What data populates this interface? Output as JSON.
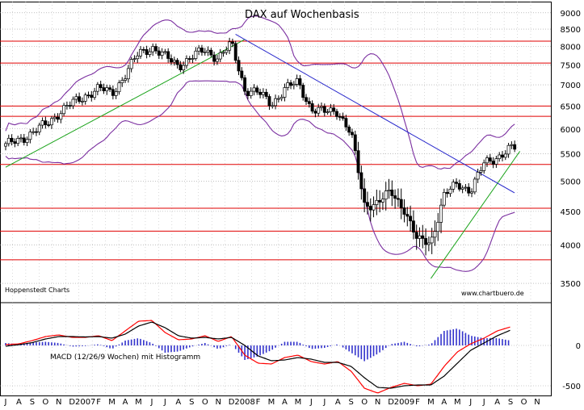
{
  "chart_data": [
    {
      "type": "candlestick",
      "title": "DAX  auf Wochenbasis",
      "y_scale": "log",
      "ylim": [
        3300,
        9200
      ],
      "y_ticks": [
        3500,
        4000,
        4500,
        5000,
        5500,
        6000,
        6500,
        7000,
        7500,
        8000,
        8500,
        9000
      ],
      "y_tick_labels": [
        "3500",
        "4000",
        "4500",
        "5000",
        "5500",
        "6000",
        "6500",
        "7000",
        "7500",
        "8000",
        "8500",
        "9000"
      ],
      "x_range": [
        "2006-07",
        "2009-11"
      ],
      "x_tick_labels": [
        "J",
        "A",
        "S",
        "O",
        "N",
        "D",
        "2007",
        "F",
        "M",
        "A",
        "M",
        "J",
        "J",
        "A",
        "S",
        "O",
        "N",
        "D",
        "2008",
        "F",
        "M",
        "A",
        "M",
        "J",
        "J",
        "A",
        "S",
        "O",
        "N",
        "D",
        "2009",
        "F",
        "M",
        "A",
        "M",
        "J",
        "J",
        "A",
        "S",
        "O",
        "N"
      ],
      "horizontal_levels": [
        8150,
        7550,
        6500,
        6270,
        5300,
        4550,
        4200,
        3800
      ],
      "close_path": [
        [
          "2006-07",
          5650
        ],
        [
          "2006-08",
          5800
        ],
        [
          "2006-09",
          5900
        ],
        [
          "2006-10",
          6100
        ],
        [
          "2006-11",
          6350
        ],
        [
          "2006-12",
          6550
        ],
        [
          "2007-01",
          6750
        ],
        [
          "2007-02",
          6900
        ],
        [
          "2007-03",
          6800
        ],
        [
          "2007-04",
          7250
        ],
        [
          "2007-05",
          7800
        ],
        [
          "2007-06",
          8000
        ],
        [
          "2007-07",
          7700
        ],
        [
          "2007-08",
          7500
        ],
        [
          "2007-09",
          7700
        ],
        [
          "2007-10",
          7900
        ],
        [
          "2007-11",
          7700
        ],
        [
          "2007-12",
          8050
        ],
        [
          "2008-01",
          6900
        ],
        [
          "2008-02",
          6800
        ],
        [
          "2008-03",
          6550
        ],
        [
          "2008-04",
          6900
        ],
        [
          "2008-05",
          7050
        ],
        [
          "2008-06",
          6450
        ],
        [
          "2008-07",
          6350
        ],
        [
          "2008-08",
          6400
        ],
        [
          "2008-09",
          5900
        ],
        [
          "2008-10",
          4600
        ],
        [
          "2008-11",
          4650
        ],
        [
          "2008-12",
          4800
        ],
        [
          "2009-01",
          4550
        ],
        [
          "2009-02",
          4050
        ],
        [
          "2009-03",
          4050
        ],
        [
          "2009-04",
          4750
        ],
        [
          "2009-05",
          4950
        ],
        [
          "2009-06",
          4850
        ],
        [
          "2009-07",
          5300
        ],
        [
          "2009-08",
          5450
        ],
        [
          "2009-09",
          5600
        ]
      ],
      "annotations": [
        "Hoppenstedt Charts",
        "www.chartbuero.de"
      ]
    },
    {
      "type": "line",
      "title": "MACD (12/26/9 Wochen) mit Histogramm",
      "ylim": [
        -600,
        500
      ],
      "y_ticks": [
        0,
        -500
      ],
      "y_tick_labels": [
        "0",
        "-500"
      ],
      "series": [
        {
          "name": "MACD",
          "color": "#ff0000",
          "values": [
            [
              "2006-07",
              10
            ],
            [
              "2006-08",
              20
            ],
            [
              "2006-09",
              60
            ],
            [
              "2006-10",
              110
            ],
            [
              "2006-11",
              130
            ],
            [
              "2006-12",
              100
            ],
            [
              "2007-01",
              100
            ],
            [
              "2007-02",
              120
            ],
            [
              "2007-03",
              60
            ],
            [
              "2007-04",
              180
            ],
            [
              "2007-05",
              300
            ],
            [
              "2007-06",
              310
            ],
            [
              "2007-07",
              160
            ],
            [
              "2007-08",
              70
            ],
            [
              "2007-09",
              80
            ],
            [
              "2007-10",
              120
            ],
            [
              "2007-11",
              50
            ],
            [
              "2007-12",
              110
            ],
            [
              "2008-01",
              -120
            ],
            [
              "2008-02",
              -220
            ],
            [
              "2008-03",
              -230
            ],
            [
              "2008-04",
              -150
            ],
            [
              "2008-05",
              -120
            ],
            [
              "2008-06",
              -200
            ],
            [
              "2008-07",
              -230
            ],
            [
              "2008-08",
              -200
            ],
            [
              "2008-09",
              -320
            ],
            [
              "2008-10",
              -530
            ],
            [
              "2008-11",
              -590
            ],
            [
              "2008-12",
              -520
            ],
            [
              "2009-01",
              -470
            ],
            [
              "2009-02",
              -500
            ],
            [
              "2009-03",
              -480
            ],
            [
              "2009-04",
              -260
            ],
            [
              "2009-05",
              -80
            ],
            [
              "2009-06",
              20
            ],
            [
              "2009-07",
              90
            ],
            [
              "2009-08",
              180
            ],
            [
              "2009-09",
              230
            ]
          ]
        },
        {
          "name": "Signal",
          "color": "#000000",
          "values": [
            [
              "2006-07",
              -10
            ],
            [
              "2006-08",
              10
            ],
            [
              "2006-09",
              35
            ],
            [
              "2006-10",
              80
            ],
            [
              "2006-11",
              110
            ],
            [
              "2006-12",
              110
            ],
            [
              "2007-01",
              105
            ],
            [
              "2007-02",
              110
            ],
            [
              "2007-03",
              90
            ],
            [
              "2007-04",
              140
            ],
            [
              "2007-05",
              240
            ],
            [
              "2007-06",
              290
            ],
            [
              "2007-07",
              220
            ],
            [
              "2007-08",
              120
            ],
            [
              "2007-09",
              90
            ],
            [
              "2007-10",
              100
            ],
            [
              "2007-11",
              80
            ],
            [
              "2007-12",
              100
            ],
            [
              "2008-01",
              0
            ],
            [
              "2008-02",
              -130
            ],
            [
              "2008-03",
              -190
            ],
            [
              "2008-04",
              -180
            ],
            [
              "2008-05",
              -150
            ],
            [
              "2008-06",
              -170
            ],
            [
              "2008-07",
              -210
            ],
            [
              "2008-08",
              -210
            ],
            [
              "2008-09",
              -260
            ],
            [
              "2008-10",
              -400
            ],
            [
              "2008-11",
              -520
            ],
            [
              "2008-12",
              -530
            ],
            [
              "2009-01",
              -500
            ],
            [
              "2009-02",
              -490
            ],
            [
              "2009-03",
              -490
            ],
            [
              "2009-04",
              -380
            ],
            [
              "2009-05",
              -220
            ],
            [
              "2009-06",
              -60
            ],
            [
              "2009-07",
              30
            ],
            [
              "2009-08",
              120
            ],
            [
              "2009-09",
              190
            ]
          ]
        }
      ],
      "histogram_color": "#3333cc"
    }
  ]
}
